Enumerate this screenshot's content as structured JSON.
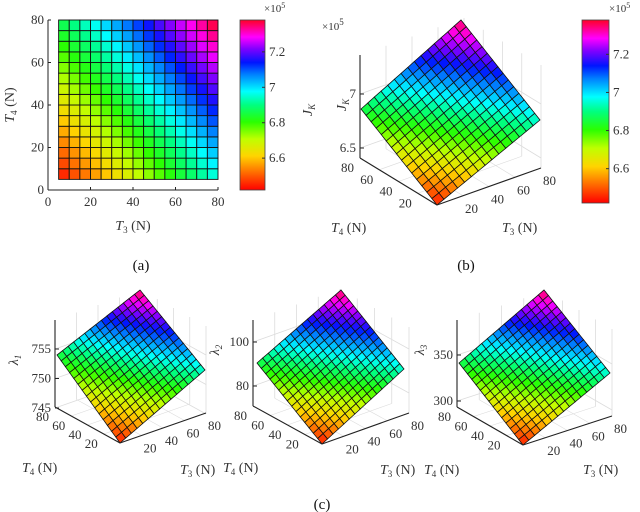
{
  "chart_data": [
    {
      "id": "a",
      "type": "heatmap",
      "caption": "(a)",
      "xlabel": "T3 (N)",
      "ylabel": "T4 (N)",
      "xticks": [
        "0",
        "20",
        "40",
        "60",
        "80"
      ],
      "yticks": [
        "0",
        "20",
        "40",
        "60",
        "80"
      ],
      "xlim": [
        0,
        80
      ],
      "ylim": [
        0,
        80
      ],
      "grid_size": [
        15,
        15
      ],
      "cell_centers": [
        7.5,
        12.5,
        17.5,
        22.5,
        27.5,
        32.5,
        37.5,
        42.5,
        47.5,
        52.5,
        57.5,
        62.5,
        67.5,
        72.5,
        77.5
      ],
      "value_model": "J_K approx 6.42e5 + 0.0113e5*T3 + 0.0089e5*T4 (roughly linear, min at bottom-left, max at top-right)",
      "colorbar": {
        "label": "J_K",
        "exponent": "×10^5",
        "ticks": [
          "6.6",
          "6.8",
          "7",
          "7.2"
        ],
        "range": [
          6.42,
          7.38
        ],
        "colormap": "hsv"
      }
    },
    {
      "id": "b",
      "type": "surface3d",
      "caption": "(b)",
      "xlabel": "T3 (N)",
      "ylabel": "T4 (N)",
      "zlabel": "J_K",
      "zexponent": "×10^5",
      "xticks": [
        "20",
        "40",
        "60",
        "80"
      ],
      "yticks": [
        "20",
        "40",
        "60",
        "80"
      ],
      "zticks": [
        "6.5",
        "7"
      ],
      "zrange": [
        6.42,
        7.38
      ],
      "grid_size": [
        15,
        15
      ],
      "colorbar": {
        "exponent": "×10^5",
        "ticks": [
          "6.6",
          "6.8",
          "7",
          "7.2"
        ],
        "range": [
          6.42,
          7.38
        ],
        "colormap": "hsv"
      }
    },
    {
      "id": "c1",
      "type": "surface3d",
      "caption": "(c)",
      "xlabel": "T3 (N)",
      "ylabel": "T4 (N)",
      "zlabel": "λ1",
      "xticks": [
        "20",
        "40",
        "60",
        "80"
      ],
      "yticks": [
        "20",
        "40",
        "60",
        "80"
      ],
      "zticks": [
        "745",
        "750",
        "755"
      ],
      "zrange": [
        742,
        757
      ],
      "grid_size": [
        15,
        15
      ]
    },
    {
      "id": "c2",
      "type": "surface3d",
      "xlabel": "T3 (N)",
      "ylabel": "T4 (N)",
      "zlabel": "λ2",
      "xticks": [
        "20",
        "40",
        "60",
        "80"
      ],
      "yticks": [
        "20",
        "40",
        "60",
        "80"
      ],
      "zticks": [
        "80",
        "100"
      ],
      "zrange": [
        70,
        110
      ],
      "grid_size": [
        15,
        15
      ]
    },
    {
      "id": "c3",
      "type": "surface3d",
      "xlabel": "T3 (N)",
      "ylabel": "T4 (N)",
      "zlabel": "λ3",
      "xticks": [
        "20",
        "40",
        "60",
        "80"
      ],
      "yticks": [
        "20",
        "40",
        "60",
        "80"
      ],
      "zticks": [
        "300",
        "350"
      ],
      "zrange": [
        290,
        380
      ],
      "grid_size": [
        15,
        15
      ]
    }
  ],
  "labels": {
    "a_caption": "(a)",
    "b_caption": "(b)",
    "c_caption": "(c)",
    "t3": "T",
    "t3_sub": "3",
    "t4": "T",
    "t4_sub": "4",
    "unit": " (N)",
    "jk": "J",
    "jk_sub": "K",
    "exp_base": "×10",
    "exp_pow": "5",
    "lambda1": "λ",
    "lambda1_sub": "1",
    "lambda2": "λ",
    "lambda2_sub": "2",
    "lambda3": "λ",
    "lambda3_sub": "3"
  }
}
